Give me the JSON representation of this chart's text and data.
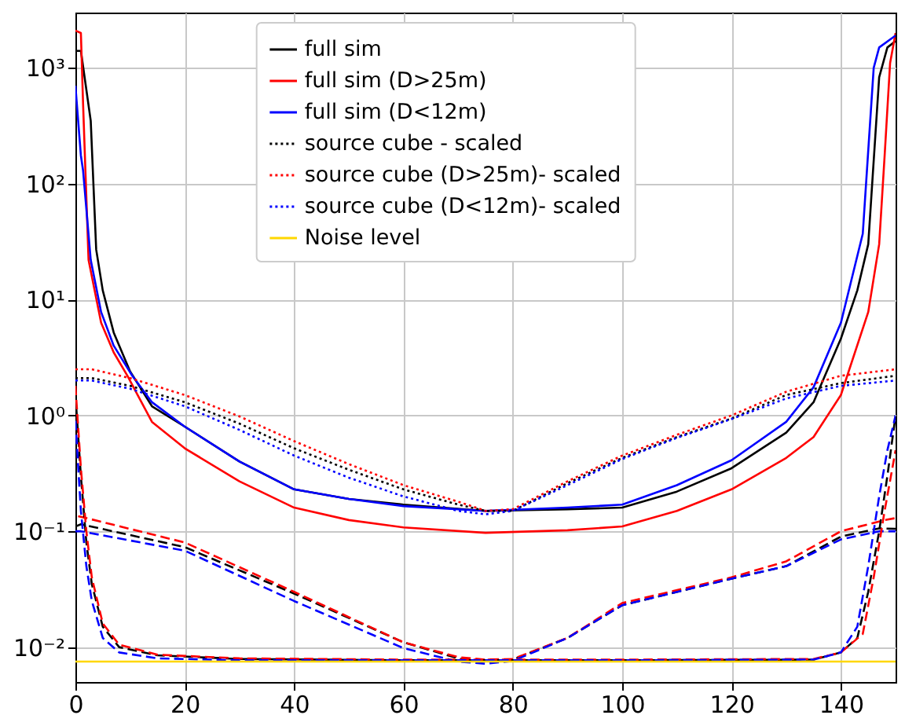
{
  "chart_data": {
    "type": "line",
    "log": "y",
    "grid": true,
    "legend": "top",
    "xlim": [
      0,
      150
    ],
    "xticks": [
      0,
      20,
      40,
      60,
      80,
      100,
      120,
      140
    ],
    "ylim": [
      0.005,
      3000
    ],
    "yticks": [
      {
        "value": 0.01,
        "label": "10⁻²"
      },
      {
        "value": 0.1,
        "label": "10⁻¹"
      },
      {
        "value": 1,
        "label": "10⁰"
      },
      {
        "value": 10,
        "label": "10¹"
      },
      {
        "value": 100,
        "label": "10²"
      },
      {
        "value": 1000,
        "label": "10³"
      }
    ],
    "series": [
      {
        "name": "full sim",
        "color": "#000000",
        "line_style": "solid",
        "x": [
          0,
          1,
          2.8,
          3.8,
          5,
          7,
          10,
          14,
          20,
          30,
          40,
          50,
          60,
          75,
          90,
          100,
          110,
          120,
          130,
          135,
          140,
          143,
          145,
          147,
          148.5,
          150
        ],
        "values": [
          1400,
          1400,
          350,
          27,
          12,
          5.2,
          2.4,
          1.2,
          0.8,
          0.4,
          0.23,
          0.19,
          0.17,
          0.15,
          0.155,
          0.16,
          0.22,
          0.35,
          0.71,
          1.3,
          4.6,
          12,
          30,
          830,
          1500,
          1700
        ]
      },
      {
        "name": "full sim (D>25m)",
        "color": "#ff0000",
        "line_style": "solid",
        "x": [
          0,
          1,
          1.4,
          2.4,
          4.7,
          7,
          9.5,
          14,
          20,
          30,
          40,
          50,
          60,
          75,
          90,
          100,
          110,
          120,
          130,
          135,
          140,
          145,
          147,
          148,
          149,
          150
        ],
        "values": [
          2100,
          2000,
          490,
          22,
          6.3,
          3.5,
          2.2,
          0.88,
          0.52,
          0.27,
          0.16,
          0.125,
          0.108,
          0.097,
          0.102,
          0.11,
          0.15,
          0.23,
          0.43,
          0.65,
          1.5,
          7.8,
          30,
          175,
          1100,
          2000
        ]
      },
      {
        "name": "full sim (D<12m)",
        "color": "#0000ff",
        "line_style": "solid",
        "x": [
          0,
          1,
          1.4,
          2.8,
          4.7,
          7,
          10.4,
          14,
          20,
          30,
          40,
          50,
          60,
          75,
          90,
          100,
          110,
          120,
          130,
          135,
          140,
          144,
          146,
          147,
          150
        ],
        "values": [
          700,
          175,
          130,
          22,
          7.8,
          4,
          2.2,
          1.3,
          0.8,
          0.4,
          0.23,
          0.19,
          0.165,
          0.15,
          0.16,
          0.17,
          0.25,
          0.41,
          0.88,
          1.75,
          6.3,
          37,
          1000,
          1500,
          1900
        ]
      },
      {
        "name": "source cube - scaled",
        "color": "#000000",
        "line_style": "dotted",
        "x": [
          0,
          3,
          10,
          20,
          30,
          40,
          50,
          60,
          70,
          75,
          80,
          90,
          100,
          110,
          120,
          130,
          140,
          150
        ],
        "values": [
          2.1,
          2.1,
          1.8,
          1.3,
          0.85,
          0.52,
          0.34,
          0.23,
          0.17,
          0.15,
          0.15,
          0.26,
          0.43,
          0.65,
          0.94,
          1.5,
          1.9,
          2.2
        ]
      },
      {
        "name": "source cube (D>25m)- scaled",
        "color": "#ff0000",
        "line_style": "dotted",
        "x": [
          0,
          3,
          10,
          20,
          30,
          40,
          50,
          60,
          70,
          75,
          80,
          90,
          100,
          110,
          120,
          130,
          140,
          150
        ],
        "values": [
          2.5,
          2.5,
          2.1,
          1.5,
          0.98,
          0.6,
          0.38,
          0.25,
          0.18,
          0.15,
          0.155,
          0.27,
          0.45,
          0.68,
          1,
          1.6,
          2.2,
          2.5
        ]
      },
      {
        "name": "source cube (D<12m)- scaled",
        "color": "#0000ff",
        "line_style": "dotted",
        "x": [
          0,
          3,
          10,
          20,
          30,
          40,
          50,
          60,
          70,
          75,
          80,
          90,
          100,
          110,
          120,
          130,
          140,
          150
        ],
        "values": [
          2,
          2,
          1.7,
          1.2,
          0.75,
          0.45,
          0.29,
          0.2,
          0.15,
          0.14,
          0.15,
          0.25,
          0.42,
          0.64,
          0.93,
          1.4,
          1.8,
          2
        ]
      },
      {
        "color": "#000000",
        "line_style": "dashed",
        "x": [
          0,
          1,
          20,
          40,
          60,
          70,
          75,
          80,
          90,
          100,
          120,
          130,
          140,
          147,
          150
        ],
        "values": [
          0.11,
          0.115,
          0.073,
          0.029,
          0.011,
          0.008,
          0.0075,
          0.0078,
          0.012,
          0.023,
          0.039,
          0.05,
          0.09,
          0.106,
          0.105
        ]
      },
      {
        "color": "#ff0000",
        "line_style": "dashed",
        "x": [
          0.5,
          2,
          20,
          40,
          60,
          70,
          75,
          80,
          90,
          100,
          120,
          130,
          140,
          148,
          150
        ],
        "values": [
          0.135,
          0.13,
          0.08,
          0.03,
          0.011,
          0.0082,
          0.0078,
          0.0079,
          0.012,
          0.024,
          0.04,
          0.055,
          0.1,
          0.125,
          0.13
        ]
      },
      {
        "color": "#0000ff",
        "line_style": "dashed",
        "x": [
          0,
          1,
          20,
          40,
          60,
          70,
          75,
          80,
          90,
          100,
          120,
          130,
          140,
          147,
          150
        ],
        "values": [
          0.1,
          0.1,
          0.068,
          0.025,
          0.0098,
          0.0075,
          0.0072,
          0.0076,
          0.012,
          0.023,
          0.039,
          0.05,
          0.085,
          0.1,
          0.1
        ]
      },
      {
        "color": "#000000",
        "line_style": "dashed",
        "x": [
          0,
          1,
          2,
          3,
          5,
          8,
          15,
          30,
          60,
          100,
          135,
          140,
          143,
          145,
          147,
          148.5,
          150
        ],
        "values": [
          1.5,
          0.3,
          0.08,
          0.035,
          0.015,
          0.01,
          0.0085,
          0.0079,
          0.0077,
          0.0077,
          0.0078,
          0.009,
          0.012,
          0.03,
          0.1,
          0.3,
          1
        ]
      },
      {
        "color": "#ff0000",
        "line_style": "dashed",
        "x": [
          0,
          1,
          2,
          3,
          5,
          8,
          15,
          30,
          60,
          100,
          135,
          140,
          144,
          146,
          148,
          150
        ],
        "values": [
          1.8,
          0.35,
          0.1,
          0.04,
          0.016,
          0.0105,
          0.0086,
          0.008,
          0.0078,
          0.0078,
          0.0079,
          0.009,
          0.013,
          0.04,
          0.15,
          0.5
        ]
      },
      {
        "color": "#0000ff",
        "line_style": "dashed",
        "x": [
          0,
          1,
          2,
          3,
          5,
          8,
          15,
          30,
          60,
          100,
          135,
          140,
          143,
          145,
          147,
          148.5,
          150
        ],
        "values": [
          0.9,
          0.15,
          0.05,
          0.025,
          0.012,
          0.009,
          0.008,
          0.0077,
          0.0077,
          0.0077,
          0.0078,
          0.009,
          0.015,
          0.05,
          0.2,
          0.5,
          1
        ]
      },
      {
        "name": "Noise level",
        "color": "#ffd700",
        "line_style": "solid",
        "x": [
          0,
          150
        ],
        "values": [
          0.0075,
          0.0075
        ]
      }
    ]
  }
}
